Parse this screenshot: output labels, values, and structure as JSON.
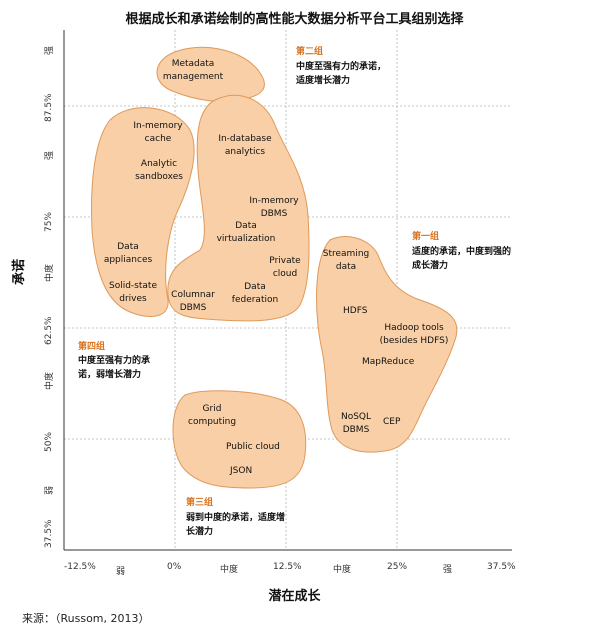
{
  "title": "根据成长和承诺绘制的高性能大数据分析平台工具组别选择",
  "y_axis_title": "承诺",
  "x_axis_title": "潜在成长",
  "source": "来源：（Russom, 2013）",
  "y_ticks": [
    "87.5%",
    "75%",
    "62.5%",
    "50%",
    "37.5%"
  ],
  "y_levels": [
    "强",
    "强",
    "中度",
    "中度",
    "弱"
  ],
  "x_ticks": [
    "-12.5%",
    "0%",
    "12.5%",
    "25%",
    "37.5%"
  ],
  "x_levels": [
    "弱",
    "中度",
    "中度",
    "强"
  ],
  "groups": {
    "group1": {
      "title": "第一组",
      "desc": "适度的承诺，中度到强的成长潜力"
    },
    "group2": {
      "title": "第二组",
      "desc": "中度至强有力的承诺，适度增长潜力"
    },
    "group3": {
      "title": "第三组",
      "desc": "弱到中度的承诺，适度增长潜力"
    },
    "group4": {
      "title": "第四组",
      "desc": "中度至强有力的承诺，弱增长潜力"
    }
  },
  "technologies": {
    "metadata_management": "Metadata management",
    "inmemory_cache": "In-memory cache",
    "analytic_sandboxes": "Analytic sandboxes",
    "data_appliances": "Data appliances",
    "solid_state_drives": "Solid-state drives",
    "columnar_dbms": "Columnar DBMS",
    "indatabase_analytics": "In-database analytics",
    "inmemory_dbms": "In-memory DBMS",
    "data_virtualization": "Data virtualization",
    "private_cloud": "Private cloud",
    "data_federation": "Data federation",
    "streaming_data": "Streaming data",
    "hdfs": "HDFS",
    "hadoop_tools": "Hadoop tools (besides HDFS)",
    "mapreduce": "MapReduce",
    "nosql_dbms": "NoSQL DBMS",
    "cep": "CEP",
    "grid_computing": "Grid computing",
    "public_cloud": "Public cloud",
    "json": "JSON"
  },
  "colors": {
    "blob_fill": "#f8cfa6",
    "blob_stroke": "#e0995a",
    "group_title": "#d9731f",
    "grid": "#b5b5b5"
  }
}
